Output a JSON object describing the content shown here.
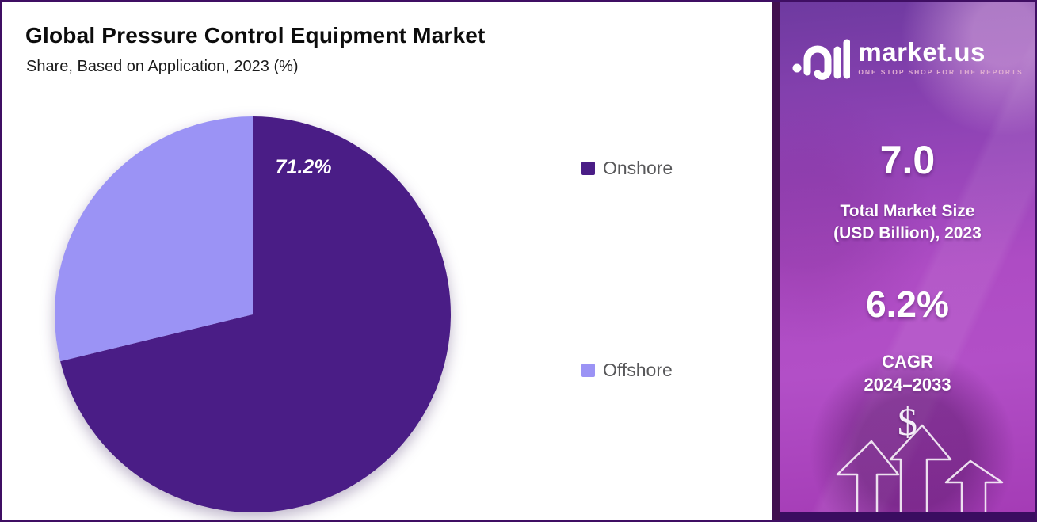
{
  "header": {
    "title": "Global Pressure Control Equipment Market",
    "subtitle": "Share, Based on Application, 2023 (%)"
  },
  "chart_data": {
    "type": "pie",
    "title": "Global Pressure Control Equipment Market",
    "subtitle": "Share, Based on Application, 2023 (%)",
    "labels": [
      "Onshore",
      "Offshore"
    ],
    "values": [
      71.2,
      28.8
    ],
    "colors": [
      "#4a1d86",
      "#9b93f5"
    ],
    "data_labels": [
      "71.2%",
      ""
    ],
    "start_angle": "top",
    "direction": "clockwise",
    "legend_position": "right",
    "legend_text_color": "#58585a"
  },
  "sidebar": {
    "brand": "market.us",
    "tagline": "ONE STOP SHOP FOR THE REPORTS",
    "stats": [
      {
        "value": "7.0",
        "label_line1": "Total Market Size",
        "label_line2": "(USD Billion), 2023"
      },
      {
        "value": "6.2%",
        "label_line1": "CAGR",
        "label_line2": "2024–2033"
      }
    ],
    "dollar_symbol": "$"
  },
  "colors": {
    "frame_border": "#3f0e63",
    "sidebar_gradient_top": "#6e3aa0",
    "sidebar_gradient_mid": "#ae4cc4",
    "sidebar_gradient_bottom": "#a43bb5"
  }
}
